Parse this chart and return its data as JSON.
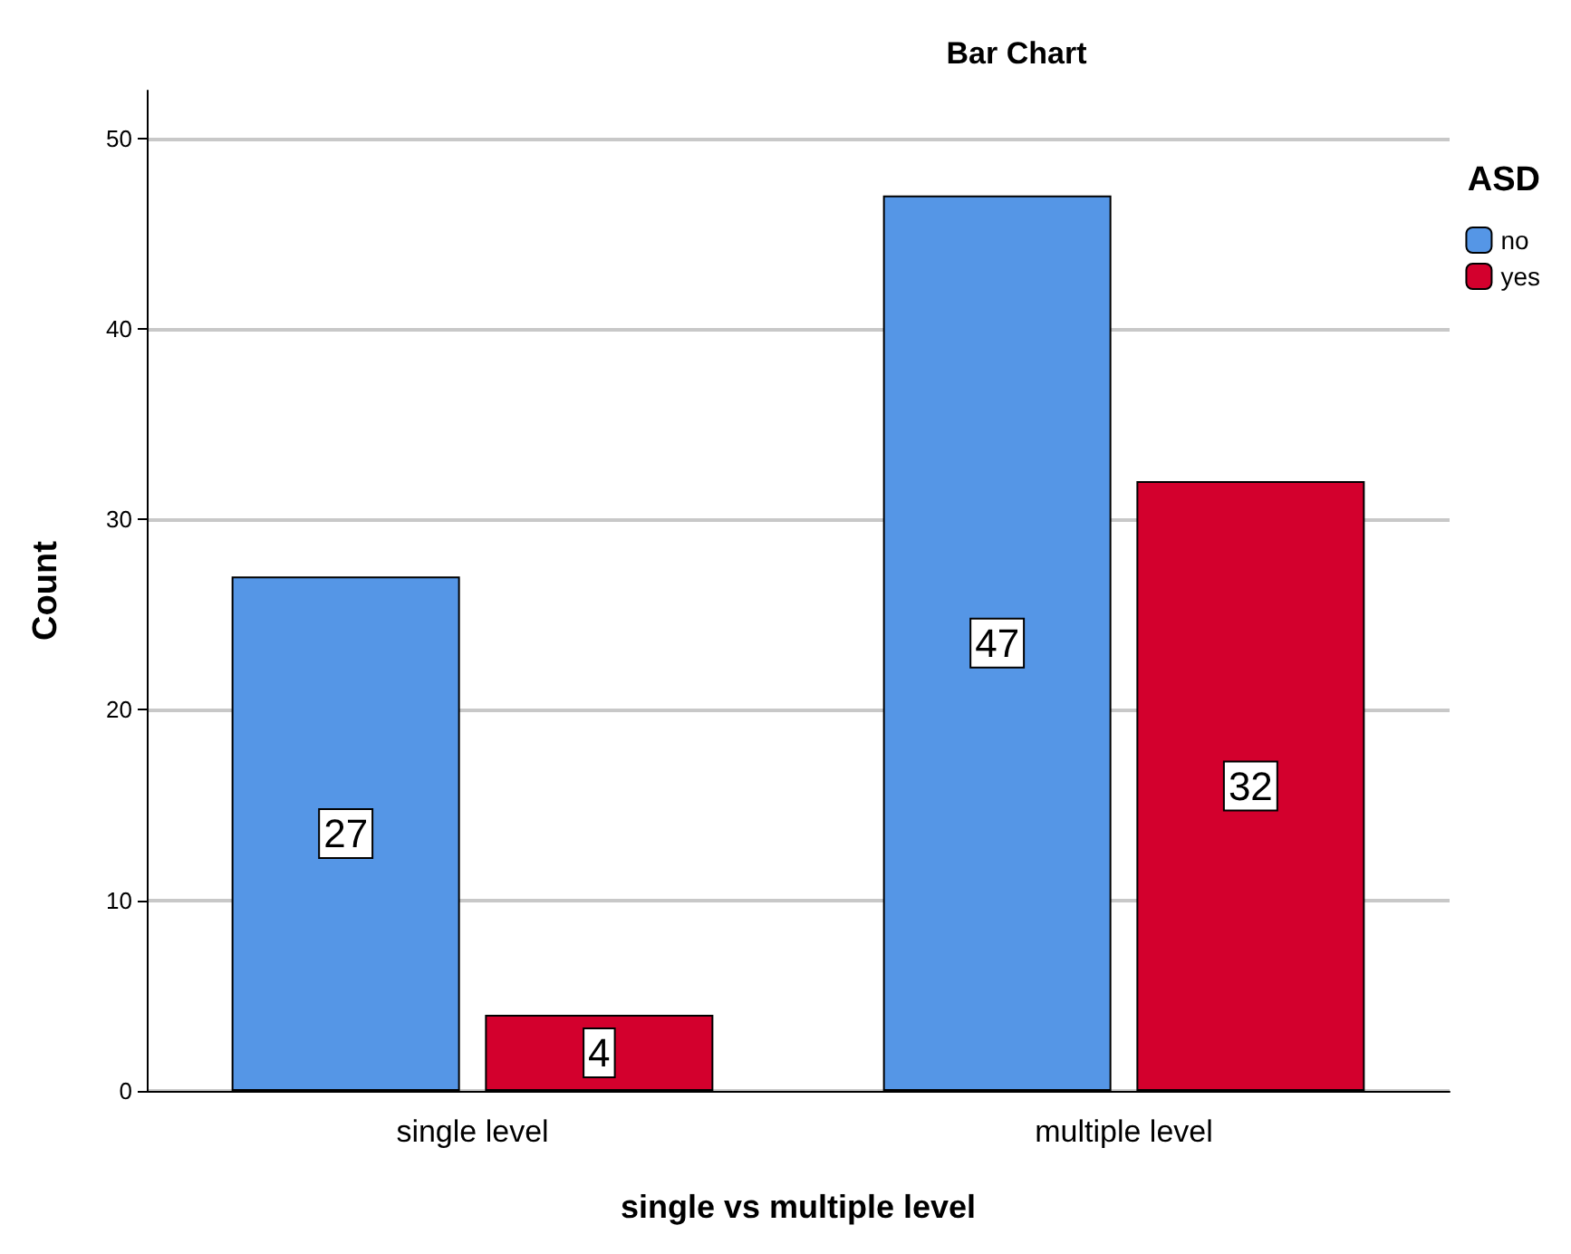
{
  "chart_data": {
    "type": "bar",
    "title": "Bar Chart",
    "xlabel": "single vs multiple level",
    "ylabel": "Count",
    "legend_title": "ASD",
    "categories": [
      "single level",
      "multiple level"
    ],
    "series": [
      {
        "name": "no",
        "color": "#5596e6",
        "values": [
          27,
          47
        ]
      },
      {
        "name": "yes",
        "color": "#d3002d",
        "values": [
          4,
          32
        ]
      }
    ],
    "ylim": [
      0,
      52.5
    ],
    "yticks": [
      0,
      10,
      20,
      30,
      40,
      50
    ],
    "grid": "y",
    "legend": "top right",
    "data_labels": true
  }
}
